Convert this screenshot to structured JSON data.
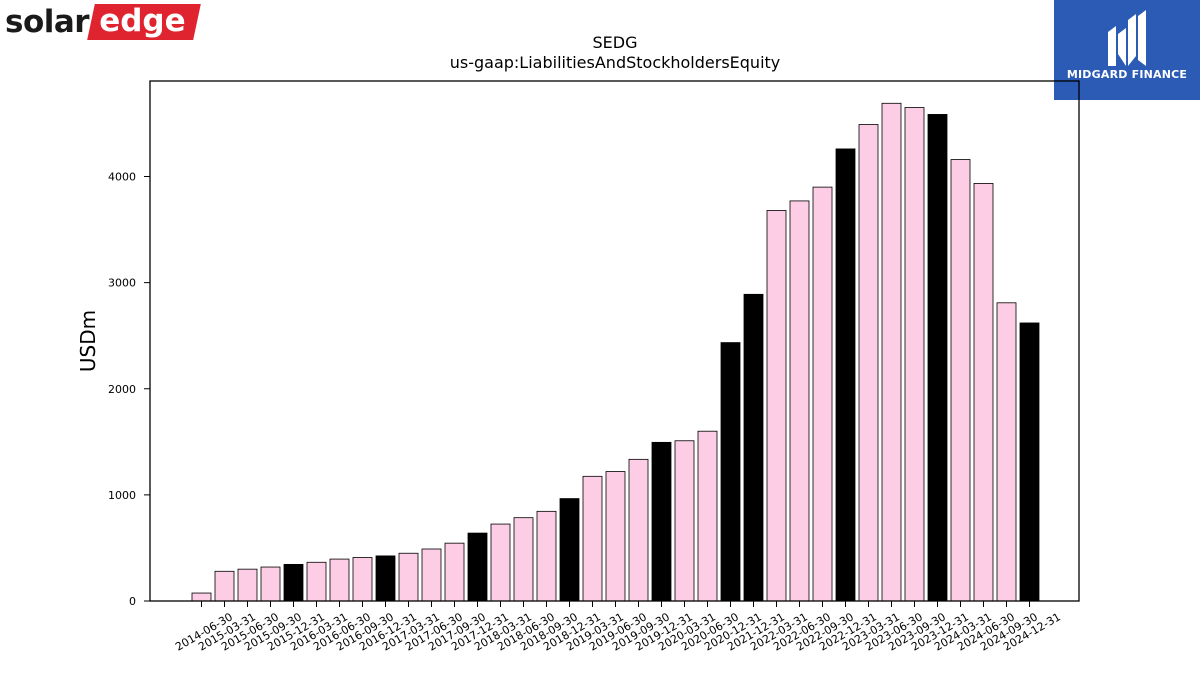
{
  "logos": {
    "left": {
      "word": "solar",
      "box_word": "edge",
      "box_color": "#e0242f"
    },
    "right": {
      "name": "MIDGARD FINANCE",
      "bg_color": "#2b5bb5"
    }
  },
  "chart_data": {
    "type": "bar",
    "title": "SEDG",
    "subtitle": "us-gaap:LiabilitiesAndStockholdersEquity",
    "xlabel": "",
    "ylabel": "USDm",
    "ylim": [
      0,
      4900
    ],
    "yticks": [
      0,
      1000,
      2000,
      3000,
      4000
    ],
    "grid": false,
    "legend": "none",
    "colors": {
      "quarter": "#fccde4",
      "year_end": "#000000",
      "edge": "#000000"
    },
    "categories": [
      "2014-06-30",
      "2015-03-31",
      "2015-06-30",
      "2015-09-30",
      "2015-12-31",
      "2016-03-31",
      "2016-06-30",
      "2016-09-30",
      "2016-12-31",
      "2017-03-31",
      "2017-06-30",
      "2017-09-30",
      "2017-12-31",
      "2018-03-31",
      "2018-06-30",
      "2018-09-30",
      "2018-12-31",
      "2019-03-31",
      "2019-06-30",
      "2019-09-30",
      "2019-12-31",
      "2020-03-31",
      "2020-06-30",
      "2020-12-31",
      "2021-12-31",
      "2022-03-31",
      "2022-06-30",
      "2022-09-30",
      "2022-12-31",
      "2023-03-31",
      "2023-06-30",
      "2023-09-30",
      "2023-12-31",
      "2024-03-31",
      "2024-06-30",
      "2024-09-30",
      "2024-12-31"
    ],
    "values": [
      75,
      280,
      300,
      320,
      345,
      365,
      395,
      410,
      425,
      450,
      490,
      545,
      640,
      725,
      785,
      845,
      965,
      1175,
      1220,
      1335,
      1495,
      1510,
      1600,
      2435,
      2890,
      3680,
      3770,
      3900,
      4260,
      4490,
      4690,
      4650,
      4585,
      4160,
      3935,
      2810,
      2620
    ],
    "year_end": [
      false,
      false,
      false,
      false,
      true,
      false,
      false,
      false,
      true,
      false,
      false,
      false,
      true,
      false,
      false,
      false,
      true,
      false,
      false,
      false,
      true,
      false,
      false,
      true,
      true,
      false,
      false,
      false,
      true,
      false,
      false,
      false,
      true,
      false,
      false,
      false,
      true
    ]
  }
}
